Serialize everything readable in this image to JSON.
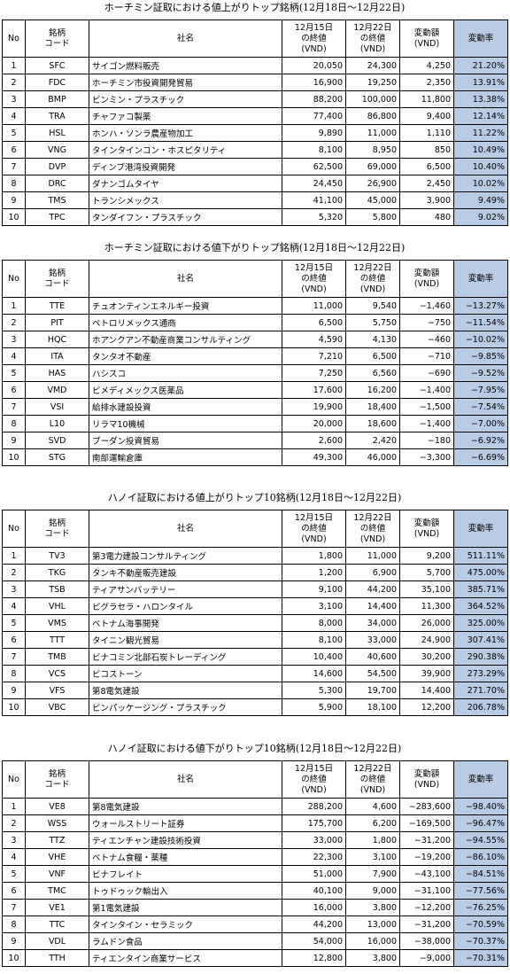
{
  "tables": [
    {
      "title": "ホーチミン証取における値上がりトップ銘柄(12月18日～12月22日)",
      "header": [
        "No",
        "銘柄\nコード",
        "社名",
        "12月15日\nの終値\n(VND)",
        "12月22日\nの終値\n(VND)",
        "変動額\n(VND)",
        "変動率"
      ],
      "rows": [
        [
          "1",
          "SFC",
          "サイゴン燃料販売",
          "20,050",
          "24,300",
          "4,250",
          "21.20%"
        ],
        [
          "2",
          "FDC",
          "ホーチミン市投資開発貿易",
          "16,900",
          "19,250",
          "2,350",
          "13.91%"
        ],
        [
          "3",
          "BMP",
          "ビンミン・プラスチック",
          "88,200",
          "100,000",
          "11,800",
          "13.38%"
        ],
        [
          "4",
          "TRA",
          "チャファコ製薬",
          "77,400",
          "86,800",
          "9,400",
          "12.14%"
        ],
        [
          "5",
          "HSL",
          "ホンハ・ソンラ農産物加工",
          "9,890",
          "11,000",
          "1,110",
          "11.22%"
        ],
        [
          "6",
          "VNG",
          "タインタインコン・ホスピタリティ",
          "8,100",
          "8,950",
          "850",
          "10.49%"
        ],
        [
          "7",
          "DVP",
          "ディンブ港湾投資開発",
          "62,500",
          "69,000",
          "6,500",
          "10.40%"
        ],
        [
          "8",
          "DRC",
          "ダナンゴムタイヤ",
          "24,450",
          "26,900",
          "2,450",
          "10.02%"
        ],
        [
          "9",
          "TMS",
          "トランシメックス",
          "41,100",
          "45,000",
          "3,900",
          "9.49%"
        ],
        [
          "10",
          "TPC",
          "タンダイフン・プラスチック",
          "5,320",
          "5,800",
          "480",
          "9.02%"
        ]
      ]
    },
    {
      "title": "ホーチミン証取における値下がりトップ銘柄(12月18日～12月22日)",
      "header": [
        "No",
        "銘柄\nコード",
        "社名",
        "12月15日\nの終値\n(VND)",
        "12月22日\nの終値\n(VND)",
        "変動額\n(VND)",
        "変動率"
      ],
      "rows": [
        [
          "1",
          "TTE",
          "チュオンティンエネルギー投資",
          "11,000",
          "9,540",
          "−1,460",
          "−13.27%"
        ],
        [
          "2",
          "PIT",
          "ペトロリメックス通商",
          "6,500",
          "5,750",
          "−750",
          "−11.54%"
        ],
        [
          "3",
          "HQC",
          "ホアンクアン不動産商業コンサルティング",
          "4,590",
          "4,130",
          "−460",
          "−10.02%"
        ],
        [
          "4",
          "ITA",
          "タンタオ不動産",
          "7,210",
          "6,500",
          "−710",
          "−9.85%"
        ],
        [
          "5",
          "HAS",
          "ハシスコ",
          "7,250",
          "6,560",
          "−690",
          "−9.52%"
        ],
        [
          "6",
          "VMD",
          "ビメディメックス医薬品",
          "17,600",
          "16,200",
          "−1,400",
          "−7.95%"
        ],
        [
          "7",
          "VSI",
          "給排水建設投資",
          "19,900",
          "18,400",
          "−1,500",
          "−7.54%"
        ],
        [
          "8",
          "L10",
          "リラマ10機械",
          "20,000",
          "18,600",
          "−1,400",
          "−7.00%"
        ],
        [
          "9",
          "SVD",
          "ブーダン投資貿易",
          "2,600",
          "2,420",
          "−180",
          "−6.92%"
        ],
        [
          "10",
          "STG",
          "南部運輸倉庫",
          "49,300",
          "46,000",
          "−3,300",
          "−6.69%"
        ]
      ]
    },
    {
      "title": "ハノイ証取における値上がりトップ10銘柄(12月18日～12月22日)",
      "header": [
        "No",
        "銘柄\nコード",
        "社名",
        "12月15日\nの終値\n(VND)",
        "12月22日\nの終値\n(VND)",
        "変動額\n(VND)",
        "変動率"
      ],
      "rows": [
        [
          "1",
          "TV3",
          "第3電力建設コンサルティング",
          "1,800",
          "11,000",
          "9,200",
          "511.11%"
        ],
        [
          "2",
          "TKG",
          "タンキ不動産販売建設",
          "1,200",
          "6,900",
          "5,700",
          "475.00%"
        ],
        [
          "3",
          "TSB",
          "ティアサンバッテリー",
          "9,100",
          "44,200",
          "35,100",
          "385.71%"
        ],
        [
          "4",
          "VHL",
          "ビグラセラ・ハロンタイル",
          "3,100",
          "14,400",
          "11,300",
          "364.52%"
        ],
        [
          "5",
          "VMS",
          "ベトナム海事開発",
          "8,000",
          "34,000",
          "26,000",
          "325.00%"
        ],
        [
          "6",
          "TTT",
          "タイニン観光貿易",
          "8,100",
          "33,000",
          "24,900",
          "307.41%"
        ],
        [
          "7",
          "TMB",
          "ビナコミン北部石炭トレーディング",
          "10,400",
          "40,600",
          "30,200",
          "290.38%"
        ],
        [
          "8",
          "VCS",
          "ビコストーン",
          "14,600",
          "54,500",
          "39,900",
          "273.29%"
        ],
        [
          "9",
          "VFS",
          "第8電気建設",
          "5,300",
          "19,700",
          "14,400",
          "271.70%"
        ],
        [
          "10",
          "VBC",
          "ビンパッケージング・プラスチック",
          "5,900",
          "18,100",
          "12,200",
          "206.78%"
        ]
      ]
    },
    {
      "title": "ハノイ証取における値下がりトップ10銘柄(12月18日～12月22日)",
      "header": [
        "No",
        "銘柄\nコード",
        "社名",
        "12月15日\nの終値\n(VND)",
        "12月22日\nの終値\n(VND)",
        "変動額\n(VND)",
        "変動率"
      ],
      "rows": [
        [
          "1",
          "VE8",
          "第8電気建設",
          "288,200",
          "4,600",
          "−283,600",
          "−98.40%"
        ],
        [
          "2",
          "WSS",
          "ウォールストリート証券",
          "175,700",
          "6,200",
          "−169,500",
          "−96.47%"
        ],
        [
          "3",
          "TTZ",
          "ティエンチャン建設技術投資",
          "33,000",
          "1,800",
          "−31,200",
          "−94.55%"
        ],
        [
          "4",
          "VHE",
          "ベトナム食糧・薬種",
          "22,300",
          "3,100",
          "−19,200",
          "−86.10%"
        ],
        [
          "5",
          "VNF",
          "ビナフレイト",
          "51,000",
          "7,900",
          "−43,100",
          "−84.51%"
        ],
        [
          "6",
          "TMC",
          "トゥドゥック輸出入",
          "40,100",
          "9,000",
          "−31,100",
          "−77.56%"
        ],
        [
          "7",
          "VE1",
          "第1電気建設",
          "16,000",
          "3,800",
          "−12,200",
          "−76.25%"
        ],
        [
          "8",
          "TTC",
          "タインタイン・セラミック",
          "44,200",
          "13,000",
          "−31,200",
          "−70.59%"
        ],
        [
          "9",
          "VDL",
          "ラムドン食品",
          "54,000",
          "16,000",
          "−38,000",
          "−70.37%"
        ],
        [
          "10",
          "TTH",
          "ティエンタイン商業サービス",
          "12,800",
          "3,800",
          "−9,000",
          "−70.31%"
        ]
      ]
    }
  ]
}
